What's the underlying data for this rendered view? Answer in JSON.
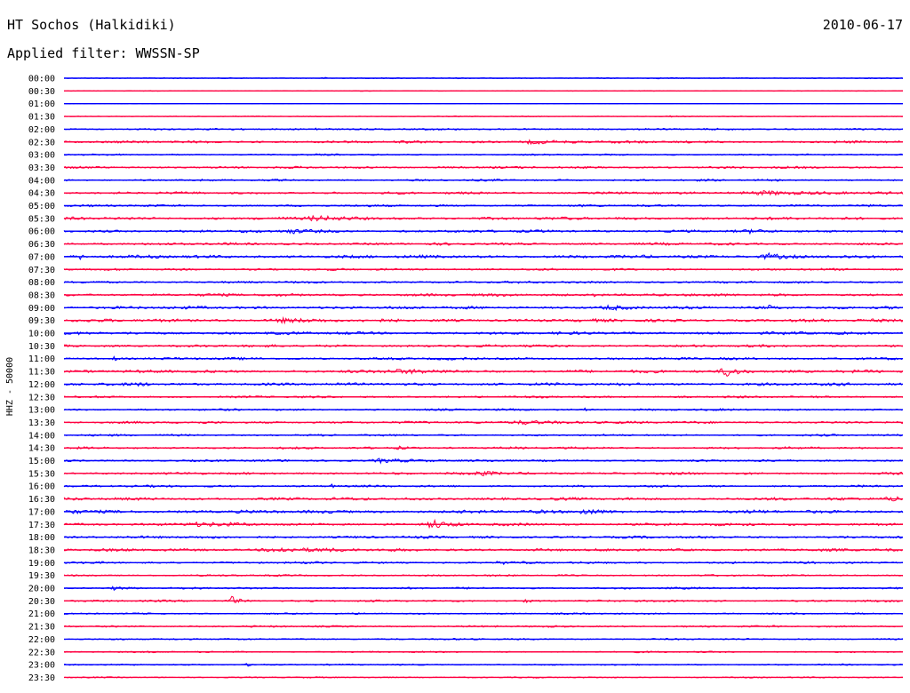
{
  "header": {
    "station": "HT Sochos (Halkidiki)",
    "date": "2010-06-17",
    "filter": "Applied filter: WWSSN-SP"
  },
  "chart_data": {
    "type": "line",
    "channel_label": "HHZ - 50000",
    "row_labels": [
      "00:00",
      "00:30",
      "01:00",
      "01:30",
      "02:00",
      "02:30",
      "03:00",
      "03:30",
      "04:00",
      "04:30",
      "05:00",
      "05:30",
      "06:00",
      "06:30",
      "07:00",
      "07:30",
      "08:00",
      "08:30",
      "09:00",
      "09:30",
      "10:00",
      "10:30",
      "11:00",
      "11:30",
      "12:00",
      "12:30",
      "13:00",
      "13:30",
      "14:00",
      "14:30",
      "15:00",
      "15:30",
      "16:00",
      "16:30",
      "17:00",
      "17:30",
      "18:00",
      "18:30",
      "19:00",
      "19:30",
      "20:00",
      "20:30",
      "21:00",
      "21:30",
      "22:00",
      "22:30",
      "23:00",
      "23:30"
    ],
    "trace_colors": [
      "#0000ff",
      "#ff0040"
    ],
    "noise_levels": [
      0.3,
      0.2,
      0.1,
      0.25,
      0.5,
      0.7,
      0.45,
      0.6,
      0.55,
      0.65,
      0.6,
      0.8,
      0.75,
      0.7,
      0.85,
      0.6,
      0.6,
      0.75,
      0.8,
      0.85,
      0.8,
      0.7,
      0.7,
      0.8,
      0.8,
      0.6,
      0.55,
      0.65,
      0.55,
      0.6,
      0.6,
      0.65,
      0.6,
      0.8,
      0.9,
      0.8,
      0.7,
      0.75,
      0.6,
      0.5,
      0.55,
      0.55,
      0.45,
      0.5,
      0.45,
      0.45,
      0.4,
      0.35
    ],
    "events": [
      {
        "row": 0,
        "x": 0.31,
        "amp": 0.25,
        "w": 0.01
      },
      {
        "row": 1,
        "x": 0.54,
        "amp": 0.25,
        "w": 0.01
      },
      {
        "row": 3,
        "x": 0.72,
        "amp": 0.3,
        "w": 0.01
      },
      {
        "row": 4,
        "x": 0.3,
        "amp": 0.55,
        "w": 0.015
      },
      {
        "row": 5,
        "x": 0.56,
        "amp": 0.8,
        "w": 0.03
      },
      {
        "row": 9,
        "x": 0.84,
        "amp": 0.9,
        "w": 0.06
      },
      {
        "row": 11,
        "x": 0.3,
        "amp": 1.1,
        "w": 0.025
      },
      {
        "row": 12,
        "x": 0.27,
        "amp": 1.1,
        "w": 0.02
      },
      {
        "row": 12,
        "x": 0.82,
        "amp": 0.7,
        "w": 0.01
      },
      {
        "row": 14,
        "x": 0.84,
        "amp": 1.3,
        "w": 0.02
      },
      {
        "row": 14,
        "x": 0.02,
        "amp": 0.9,
        "w": 0.005
      },
      {
        "row": 17,
        "x": 0.63,
        "amp": 0.9,
        "w": 0.008
      },
      {
        "row": 18,
        "x": 0.65,
        "amp": 0.9,
        "w": 0.015
      },
      {
        "row": 18,
        "x": 0.84,
        "amp": 0.9,
        "w": 0.015
      },
      {
        "row": 19,
        "x": 0.26,
        "amp": 0.9,
        "w": 0.03
      },
      {
        "row": 22,
        "x": 0.06,
        "amp": 1.0,
        "w": 0.003
      },
      {
        "row": 23,
        "x": 0.79,
        "amp": 2.6,
        "w": 0.015
      },
      {
        "row": 23,
        "x": 0.4,
        "amp": 0.8,
        "w": 0.04
      },
      {
        "row": 24,
        "x": 0.09,
        "amp": 0.6,
        "w": 0.01
      },
      {
        "row": 26,
        "x": 0.62,
        "amp": 0.7,
        "w": 0.005
      },
      {
        "row": 27,
        "x": 0.55,
        "amp": 0.9,
        "w": 0.04
      },
      {
        "row": 29,
        "x": 0.4,
        "amp": 0.7,
        "w": 0.01
      },
      {
        "row": 30,
        "x": 0.38,
        "amp": 1.0,
        "w": 0.03
      },
      {
        "row": 31,
        "x": 0.5,
        "amp": 0.8,
        "w": 0.03
      },
      {
        "row": 32,
        "x": 0.32,
        "amp": 0.8,
        "w": 0.005
      },
      {
        "row": 33,
        "x": 0.99,
        "amp": 1.0,
        "w": 0.03
      },
      {
        "row": 34,
        "x": 0.62,
        "amp": 1.3,
        "w": 0.015
      },
      {
        "row": 34,
        "x": 0.01,
        "amp": 1.0,
        "w": 0.01
      },
      {
        "row": 35,
        "x": 0.44,
        "amp": 2.2,
        "w": 0.012
      },
      {
        "row": 35,
        "x": 0.16,
        "amp": 0.8,
        "w": 0.03
      },
      {
        "row": 36,
        "x": 0.77,
        "amp": 0.8,
        "w": 0.003
      },
      {
        "row": 37,
        "x": 0.26,
        "amp": 0.9,
        "w": 0.05
      },
      {
        "row": 38,
        "x": 0.52,
        "amp": 0.7,
        "w": 0.01
      },
      {
        "row": 40,
        "x": 0.06,
        "amp": 0.7,
        "w": 0.01
      },
      {
        "row": 41,
        "x": 0.2,
        "amp": 2.2,
        "w": 0.008
      },
      {
        "row": 41,
        "x": 0.55,
        "amp": 0.7,
        "w": 0.01
      },
      {
        "row": 44,
        "x": 0.06,
        "amp": 0.8,
        "w": 0.008
      },
      {
        "row": 46,
        "x": 0.22,
        "amp": 0.6,
        "w": 0.01
      }
    ]
  }
}
